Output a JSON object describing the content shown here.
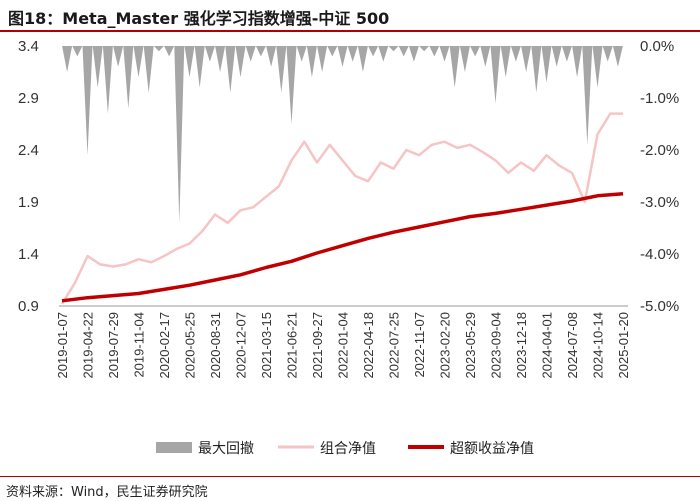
{
  "header": {
    "title": "图18：Meta_Master 强化学习指数增强-中证 500",
    "source": "资料来源：Wind，民生证券研究院"
  },
  "chart_data": {
    "type": "line",
    "title": "Meta_Master 强化学习指数增强-中证 500",
    "xlabel": "",
    "ylabel_left": "",
    "ylabel_right": "",
    "y_left_ticks": [
      "3.4",
      "2.9",
      "2.4",
      "1.9",
      "1.4",
      "0.9"
    ],
    "y_left_range": [
      0.9,
      3.4
    ],
    "y_right_ticks": [
      "0.0%",
      "-1.0%",
      "-2.0%",
      "-3.0%",
      "-4.0%",
      "-5.0%"
    ],
    "y_right_range": [
      -5.0,
      0.0
    ],
    "x_ticks": [
      "2019-01-07",
      "2019-04-22",
      "2019-07-29",
      "2019-11-04",
      "2020-02-17",
      "2020-05-25",
      "2020-08-31",
      "2020-12-07",
      "2021-03-15",
      "2021-06-21",
      "2021-09-27",
      "2022-01-04",
      "2022-04-18",
      "2022-07-25",
      "2022-11-07",
      "2023-02-20",
      "2023-05-29",
      "2023-09-04",
      "2023-12-18",
      "2024-04-01",
      "2024-07-08",
      "2024-10-14",
      "2025-01-20"
    ],
    "legend": [
      "最大回撤",
      "组合净值",
      "超额收益净值"
    ],
    "legend_position": "bottom",
    "colors": {
      "drawdown": "#a6a6a6",
      "portfolio": "#f6c4c4",
      "excess": "#c00000"
    },
    "series": [
      {
        "name": "组合净值",
        "axis": "left",
        "x": [
          0,
          0.5,
          1,
          1.5,
          2,
          2.5,
          3,
          3.5,
          4,
          4.5,
          5,
          5.5,
          6,
          6.5,
          7,
          7.5,
          8,
          8.5,
          9,
          9.5,
          10,
          10.5,
          11,
          11.5,
          12,
          12.5,
          13,
          13.5,
          14,
          14.5,
          15,
          15.5,
          16,
          16.5,
          17,
          17.5,
          18,
          18.5,
          19,
          19.5,
          20,
          20.5,
          21,
          21.5,
          22
        ],
        "values": [
          0.92,
          1.12,
          1.38,
          1.3,
          1.28,
          1.3,
          1.35,
          1.32,
          1.38,
          1.45,
          1.5,
          1.62,
          1.78,
          1.7,
          1.82,
          1.85,
          1.95,
          2.05,
          2.3,
          2.48,
          2.28,
          2.45,
          2.3,
          2.15,
          2.1,
          2.28,
          2.22,
          2.4,
          2.35,
          2.45,
          2.48,
          2.42,
          2.45,
          2.38,
          2.3,
          2.18,
          2.28,
          2.2,
          2.35,
          2.25,
          2.18,
          1.9,
          2.55,
          2.75,
          2.75
        ]
      },
      {
        "name": "超额收益净值",
        "axis": "left",
        "x": [
          0,
          1,
          2,
          3,
          4,
          5,
          6,
          7,
          8,
          9,
          10,
          11,
          12,
          13,
          14,
          15,
          16,
          17,
          18,
          19,
          20,
          21,
          22
        ],
        "values": [
          0.95,
          0.98,
          1.0,
          1.02,
          1.06,
          1.1,
          1.15,
          1.2,
          1.27,
          1.33,
          1.41,
          1.48,
          1.55,
          1.61,
          1.66,
          1.71,
          1.76,
          1.79,
          1.83,
          1.87,
          1.91,
          1.96,
          1.98
        ]
      },
      {
        "name": "最大回撤",
        "axis": "right",
        "type": "bar",
        "x": [
          0.2,
          0.6,
          1.0,
          1.4,
          1.8,
          2.2,
          2.6,
          3.0,
          3.4,
          3.8,
          4.2,
          4.6,
          5.0,
          5.4,
          5.8,
          6.2,
          6.6,
          7.0,
          7.4,
          7.8,
          8.2,
          8.6,
          9.0,
          9.4,
          9.8,
          10.2,
          10.6,
          11.0,
          11.4,
          11.8,
          12.2,
          12.6,
          13.0,
          13.4,
          13.8,
          14.2,
          14.6,
          15.0,
          15.4,
          15.8,
          16.2,
          16.6,
          17.0,
          17.4,
          17.8,
          18.2,
          18.6,
          19.0,
          19.4,
          19.8,
          20.2,
          20.6,
          21.0,
          21.4,
          21.8
        ],
        "values": [
          -0.5,
          -0.2,
          -2.1,
          -0.8,
          -1.3,
          -0.4,
          -1.2,
          -0.6,
          -0.9,
          -0.1,
          -0.2,
          -3.4,
          -0.6,
          -0.8,
          -0.3,
          -0.5,
          -0.9,
          -0.6,
          -0.3,
          -0.2,
          -0.4,
          -0.9,
          -1.5,
          -0.3,
          -0.6,
          -0.5,
          -0.2,
          -0.4,
          -0.3,
          -0.5,
          -0.2,
          -0.3,
          -0.1,
          -0.2,
          -0.3,
          -0.1,
          -0.2,
          -0.3,
          -0.8,
          -0.5,
          -0.2,
          -0.4,
          -1.1,
          -0.6,
          -0.3,
          -0.5,
          -0.9,
          -0.7,
          -0.4,
          -0.3,
          -0.6,
          -1.9,
          -0.8,
          -0.3,
          -0.4
        ]
      }
    ]
  }
}
